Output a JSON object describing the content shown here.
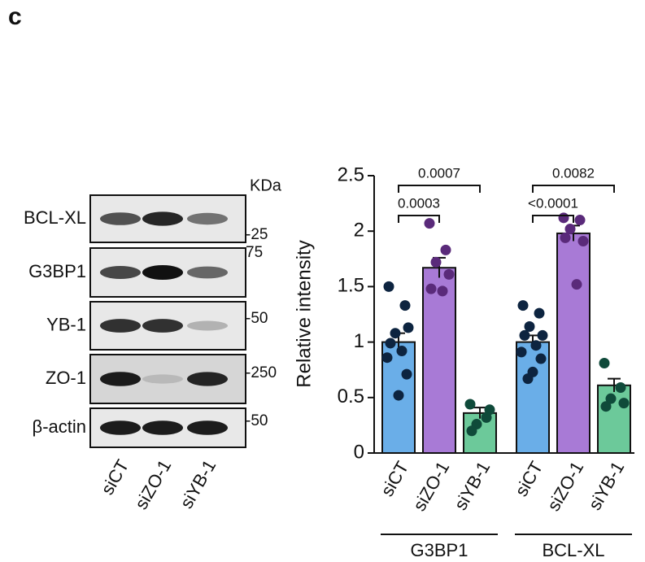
{
  "panel_label": "c",
  "blot": {
    "unit_label": "KDa",
    "bands": [
      "BCL-XL",
      "G3BP1",
      "YB-1",
      "ZO-1",
      "β-actin"
    ],
    "markers": [
      "-25",
      "75",
      "-50",
      "-250",
      "-50"
    ],
    "lanes": [
      "siCT",
      "siZO-1",
      "siYB-1"
    ]
  },
  "chart_data": {
    "type": "bar",
    "y_label": "Relative intensity",
    "ylim": [
      0,
      2.5
    ],
    "yticks": [
      0,
      0.5,
      1.0,
      1.5,
      2.0,
      2.5
    ],
    "categories": [
      "siCT",
      "siZO-1",
      "siYB-1"
    ],
    "colors": [
      "#6aaee8",
      "#a87ad6",
      "#6cc99a"
    ],
    "point_colors": [
      "#0d2440",
      "#5a2a7a",
      "#0f4a3a"
    ],
    "series": [
      {
        "name": "G3BP1",
        "values": [
          1.0,
          1.67,
          0.36
        ],
        "errors": [
          0.08,
          0.09,
          0.05
        ],
        "points": [
          [
            1.5,
            1.33,
            1.08,
            1.13,
            0.99,
            0.92,
            0.86,
            0.71,
            0.52
          ],
          [
            2.07,
            1.83,
            1.72,
            1.61,
            1.48,
            1.46
          ],
          [
            0.44,
            0.32,
            0.26,
            0.39,
            0.2
          ]
        ],
        "annotations": [
          "0.0003",
          "0.0007"
        ]
      },
      {
        "name": "BCL-XL",
        "values": [
          1.0,
          1.98,
          0.61
        ],
        "errors": [
          0.06,
          0.07,
          0.06
        ],
        "points": [
          [
            1.33,
            1.26,
            1.14,
            1.06,
            1.06,
            0.97,
            0.91,
            0.85,
            0.73,
            0.67
          ],
          [
            2.12,
            2.1,
            2.02,
            1.91,
            1.94,
            1.52
          ],
          [
            0.81,
            0.59,
            0.49,
            0.45,
            0.42
          ]
        ],
        "annotations": [
          "<0.0001",
          "0.0082"
        ]
      }
    ]
  }
}
